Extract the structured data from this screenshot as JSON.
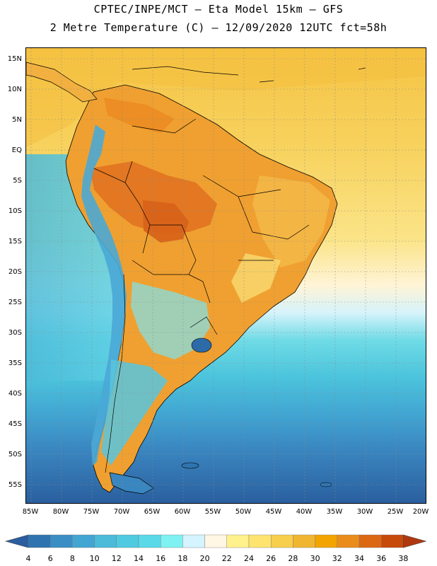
{
  "header": {
    "title_line1": "CPTEC/INPE/MCT —  Eta Model 15km — GFS",
    "title_line2": "2 Metre Temperature (C) — 12/09/2020 12UTC fct=58h"
  },
  "map": {
    "latitude_labels": [
      "15N",
      "10N",
      "5N",
      "EQ",
      "5S",
      "10S",
      "15S",
      "20S",
      "25S",
      "30S",
      "35S",
      "40S",
      "45S",
      "50S",
      "55S"
    ],
    "longitude_labels": [
      "85W",
      "80W",
      "75W",
      "70W",
      "65W",
      "60W",
      "55W",
      "50W",
      "45W",
      "40W",
      "35W",
      "30W",
      "25W",
      "20W"
    ],
    "extent": {
      "lon_min": -86,
      "lon_max": -19.5,
      "lat_min": -57.5,
      "lat_max": 17.5
    },
    "features": [
      {
        "name": "south-america-land",
        "kind": "continent",
        "color": "#f0a030"
      },
      {
        "name": "amazon-hot-core",
        "kind": "temperature-region",
        "color": "#e07020"
      },
      {
        "name": "mato-grosso-hot-core",
        "kind": "temperature-region",
        "color": "#d66018"
      },
      {
        "name": "andes-cold-belt",
        "kind": "temperature-region",
        "color": "#4aa8d6"
      },
      {
        "name": "patagonia-cool",
        "kind": "temperature-region",
        "color": "#58c6df"
      },
      {
        "name": "atlantic-warm-sea",
        "kind": "ocean",
        "color": "#f4d060"
      },
      {
        "name": "southern-cold-sea",
        "kind": "ocean",
        "color": "#2d62a0"
      },
      {
        "name": "lagoa-dos-patos",
        "kind": "lake",
        "color": "#2d6aa8"
      }
    ]
  },
  "colorbar": {
    "labels": [
      "4",
      "6",
      "8",
      "10",
      "12",
      "14",
      "16",
      "18",
      "20",
      "22",
      "24",
      "26",
      "28",
      "30",
      "32",
      "34",
      "36",
      "38"
    ],
    "colors": [
      "#2a5e9e",
      "#2f74b0",
      "#3a8ec4",
      "#43a5d2",
      "#4cbad9",
      "#4fcae0",
      "#5ad9e8",
      "#7ef2f2",
      "#d4f4ff",
      "#fff6e4",
      "#fff18c",
      "#fde46e",
      "#f8cf4c",
      "#f0b632",
      "#f3a400",
      "#ea8c1c",
      "#dc6814",
      "#c84a0a",
      "#b03810"
    ]
  }
}
